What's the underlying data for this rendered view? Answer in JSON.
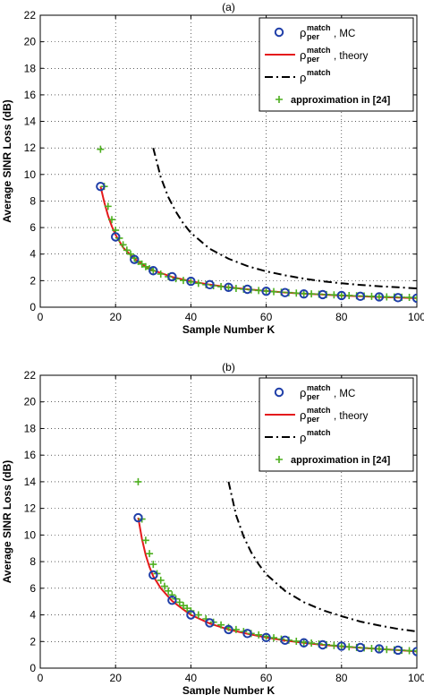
{
  "chart_data": [
    {
      "type": "line",
      "title": "(a)",
      "xlabel": "Sample Number K",
      "ylabel": "Average SINR Loss (dB)",
      "xlim": [
        0,
        100
      ],
      "ylim": [
        0,
        22
      ],
      "xticks": [
        0,
        20,
        40,
        60,
        80,
        100
      ],
      "yticks": [
        0,
        2,
        4,
        6,
        8,
        10,
        12,
        14,
        16,
        18,
        20,
        22
      ],
      "grid": true,
      "legend_position": "top-right",
      "series": [
        {
          "name": "ρ_per^match, MC",
          "legend_main": "ρ",
          "legend_sup": "match",
          "legend_sub": "per",
          "legend_suffix": ", MC",
          "style": "markers-circle",
          "color": "#1f3ea8",
          "points": [
            [
              16,
              9.1
            ],
            [
              20,
              5.3
            ],
            [
              25,
              3.6
            ],
            [
              30,
              2.75
            ],
            [
              35,
              2.3
            ],
            [
              40,
              1.95
            ],
            [
              45,
              1.7
            ],
            [
              50,
              1.5
            ],
            [
              55,
              1.35
            ],
            [
              60,
              1.2
            ],
            [
              65,
              1.1
            ],
            [
              70,
              1.0
            ],
            [
              75,
              0.95
            ],
            [
              80,
              0.88
            ],
            [
              85,
              0.82
            ],
            [
              90,
              0.78
            ],
            [
              95,
              0.72
            ],
            [
              100,
              0.68
            ]
          ]
        },
        {
          "name": "ρ_per^match, theory",
          "legend_main": "ρ",
          "legend_sup": "match",
          "legend_sub": "per",
          "legend_suffix": ", theory",
          "style": "solid",
          "color": "#e41a1c",
          "points": [
            [
              16,
              9.1
            ],
            [
              17,
              7.9
            ],
            [
              18,
              6.9
            ],
            [
              19,
              6.1
            ],
            [
              20,
              5.45
            ],
            [
              22,
              4.5
            ],
            [
              25,
              3.65
            ],
            [
              28,
              3.05
            ],
            [
              30,
              2.78
            ],
            [
              35,
              2.28
            ],
            [
              40,
              1.95
            ],
            [
              45,
              1.7
            ],
            [
              50,
              1.5
            ],
            [
              55,
              1.35
            ],
            [
              60,
              1.22
            ],
            [
              65,
              1.11
            ],
            [
              70,
              1.02
            ],
            [
              75,
              0.95
            ],
            [
              80,
              0.88
            ],
            [
              85,
              0.82
            ],
            [
              90,
              0.77
            ],
            [
              95,
              0.72
            ],
            [
              100,
              0.68
            ]
          ]
        },
        {
          "name": "ρ^match",
          "legend_main": "ρ",
          "legend_sup": "match",
          "legend_sub": "",
          "legend_suffix": "",
          "style": "dashdot",
          "color": "#000000",
          "points": [
            [
              30,
              12.0
            ],
            [
              32,
              9.8
            ],
            [
              34,
              8.3
            ],
            [
              36,
              7.2
            ],
            [
              38,
              6.3
            ],
            [
              40,
              5.6
            ],
            [
              45,
              4.4
            ],
            [
              50,
              3.65
            ],
            [
              55,
              3.1
            ],
            [
              60,
              2.7
            ],
            [
              65,
              2.4
            ],
            [
              70,
              2.15
            ],
            [
              75,
              1.95
            ],
            [
              80,
              1.8
            ],
            [
              85,
              1.68
            ],
            [
              90,
              1.58
            ],
            [
              95,
              1.5
            ],
            [
              100,
              1.42
            ]
          ]
        },
        {
          "name": "approximation in [24]",
          "legend_main": "approximation in [24]",
          "legend_sup": "",
          "legend_sub": "",
          "legend_suffix": "",
          "style": "markers-plus",
          "color": "#4daf1f",
          "points": [
            [
              16,
              11.9
            ],
            [
              17,
              9.1
            ],
            [
              18,
              7.6
            ],
            [
              19,
              6.6
            ],
            [
              20,
              5.8
            ],
            [
              21,
              5.2
            ],
            [
              22,
              4.7
            ],
            [
              23,
              4.3
            ],
            [
              24,
              4.0
            ],
            [
              25,
              3.7
            ],
            [
              26,
              3.45
            ],
            [
              27,
              3.25
            ],
            [
              28,
              3.05
            ],
            [
              29,
              2.9
            ],
            [
              30,
              2.75
            ],
            [
              32,
              2.5
            ],
            [
              34,
              2.3
            ],
            [
              36,
              2.15
            ],
            [
              38,
              2.02
            ],
            [
              40,
              1.9
            ],
            [
              42,
              1.8
            ],
            [
              44,
              1.7
            ],
            [
              46,
              1.62
            ],
            [
              48,
              1.55
            ],
            [
              50,
              1.48
            ],
            [
              52,
              1.42
            ],
            [
              54,
              1.36
            ],
            [
              56,
              1.31
            ],
            [
              58,
              1.26
            ],
            [
              60,
              1.21
            ],
            [
              62,
              1.17
            ],
            [
              64,
              1.13
            ],
            [
              66,
              1.1
            ],
            [
              68,
              1.06
            ],
            [
              70,
              1.03
            ],
            [
              72,
              1.0
            ],
            [
              74,
              0.98
            ],
            [
              76,
              0.95
            ],
            [
              78,
              0.93
            ],
            [
              80,
              0.9
            ],
            [
              82,
              0.88
            ],
            [
              84,
              0.86
            ],
            [
              86,
              0.84
            ],
            [
              88,
              0.82
            ],
            [
              90,
              0.8
            ],
            [
              92,
              0.78
            ],
            [
              94,
              0.77
            ],
            [
              96,
              0.75
            ],
            [
              98,
              0.74
            ],
            [
              100,
              0.72
            ]
          ]
        }
      ]
    },
    {
      "type": "line",
      "title": "(b)",
      "xlabel": "Sample Number K",
      "ylabel": "Average SINR Loss (dB)",
      "xlim": [
        0,
        100
      ],
      "ylim": [
        0,
        22
      ],
      "xticks": [
        0,
        20,
        40,
        60,
        80,
        100
      ],
      "yticks": [
        0,
        2,
        4,
        6,
        8,
        10,
        12,
        14,
        16,
        18,
        20,
        22
      ],
      "grid": true,
      "legend_position": "top-right",
      "series": [
        {
          "name": "ρ_per^match, MC",
          "legend_main": "ρ",
          "legend_sup": "match",
          "legend_sub": "per",
          "legend_suffix": ", MC",
          "style": "markers-circle",
          "color": "#1f3ea8",
          "points": [
            [
              26,
              11.3
            ],
            [
              30,
              7.0
            ],
            [
              35,
              5.1
            ],
            [
              40,
              4.0
            ],
            [
              45,
              3.4
            ],
            [
              50,
              2.9
            ],
            [
              55,
              2.6
            ],
            [
              60,
              2.3
            ],
            [
              65,
              2.1
            ],
            [
              70,
              1.9
            ],
            [
              75,
              1.75
            ],
            [
              80,
              1.65
            ],
            [
              85,
              1.55
            ],
            [
              90,
              1.45
            ],
            [
              95,
              1.35
            ],
            [
              100,
              1.25
            ]
          ]
        },
        {
          "name": "ρ_per^match, theory",
          "legend_main": "ρ",
          "legend_sup": "match",
          "legend_sub": "per",
          "legend_suffix": ", theory",
          "style": "solid",
          "color": "#e41a1c",
          "points": [
            [
              26,
              11.3
            ],
            [
              27,
              9.7
            ],
            [
              28,
              8.5
            ],
            [
              29,
              7.6
            ],
            [
              30,
              6.9
            ],
            [
              32,
              6.0
            ],
            [
              35,
              5.05
            ],
            [
              38,
              4.4
            ],
            [
              40,
              4.0
            ],
            [
              45,
              3.35
            ],
            [
              50,
              2.9
            ],
            [
              55,
              2.58
            ],
            [
              60,
              2.3
            ],
            [
              65,
              2.08
            ],
            [
              70,
              1.9
            ],
            [
              75,
              1.75
            ],
            [
              80,
              1.63
            ],
            [
              85,
              1.53
            ],
            [
              90,
              1.44
            ],
            [
              95,
              1.35
            ],
            [
              100,
              1.25
            ]
          ]
        },
        {
          "name": "ρ^match",
          "legend_main": "ρ",
          "legend_sup": "match",
          "legend_sub": "",
          "legend_suffix": "",
          "style": "dashdot",
          "color": "#000000",
          "points": [
            [
              50,
              14.0
            ],
            [
              52,
              11.5
            ],
            [
              54,
              9.9
            ],
            [
              56,
              8.7
            ],
            [
              58,
              7.8
            ],
            [
              60,
              7.05
            ],
            [
              65,
              5.8
            ],
            [
              70,
              4.95
            ],
            [
              75,
              4.35
            ],
            [
              80,
              3.9
            ],
            [
              85,
              3.5
            ],
            [
              90,
              3.2
            ],
            [
              95,
              2.95
            ],
            [
              100,
              2.75
            ]
          ]
        },
        {
          "name": "approximation in [24]",
          "legend_main": "approximation in [24]",
          "legend_sup": "",
          "legend_sub": "",
          "legend_suffix": "",
          "style": "markers-plus",
          "color": "#4daf1f",
          "points": [
            [
              26,
              14.0
            ],
            [
              27,
              11.2
            ],
            [
              28,
              9.6
            ],
            [
              29,
              8.6
            ],
            [
              30,
              7.8
            ],
            [
              31,
              7.1
            ],
            [
              32,
              6.6
            ],
            [
              33,
              6.15
            ],
            [
              34,
              5.8
            ],
            [
              35,
              5.5
            ],
            [
              36,
              5.2
            ],
            [
              37,
              4.95
            ],
            [
              38,
              4.7
            ],
            [
              39,
              4.5
            ],
            [
              40,
              4.3
            ],
            [
              42,
              4.0
            ],
            [
              44,
              3.7
            ],
            [
              46,
              3.45
            ],
            [
              48,
              3.25
            ],
            [
              50,
              3.05
            ],
            [
              52,
              2.9
            ],
            [
              54,
              2.75
            ],
            [
              56,
              2.6
            ],
            [
              58,
              2.5
            ],
            [
              60,
              2.38
            ],
            [
              62,
              2.28
            ],
            [
              64,
              2.18
            ],
            [
              66,
              2.1
            ],
            [
              68,
              2.02
            ],
            [
              70,
              1.95
            ],
            [
              72,
              1.88
            ],
            [
              74,
              1.82
            ],
            [
              76,
              1.76
            ],
            [
              78,
              1.7
            ],
            [
              80,
              1.65
            ],
            [
              82,
              1.6
            ],
            [
              84,
              1.56
            ],
            [
              86,
              1.52
            ],
            [
              88,
              1.48
            ],
            [
              90,
              1.44
            ],
            [
              92,
              1.4
            ],
            [
              94,
              1.37
            ],
            [
              96,
              1.34
            ],
            [
              98,
              1.31
            ],
            [
              100,
              1.28
            ]
          ]
        }
      ]
    }
  ]
}
